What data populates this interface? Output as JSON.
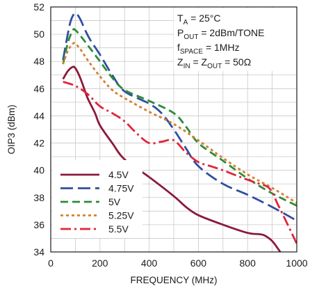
{
  "chart_data": {
    "type": "line",
    "xlabel": "FREQUENCY (MHz)",
    "ylabel": "OIP3 (dBm)",
    "xlim": [
      0,
      1000
    ],
    "ylim": [
      34,
      52
    ],
    "xticks": [
      0,
      200,
      400,
      600,
      800,
      1000
    ],
    "yticks": [
      34,
      36,
      38,
      40,
      42,
      44,
      46,
      48,
      50,
      52
    ],
    "grid": true,
    "legend_position": "bottom-left",
    "annotations": [
      {
        "main": "T",
        "sub": "A",
        "rest": " = 25°C"
      },
      {
        "main": "P",
        "sub": "OUT",
        "rest": " = 2dBm/TONE"
      },
      {
        "main": "f",
        "sub": "SPACE",
        "rest": " = 1MHz"
      },
      {
        "main": "Z",
        "sub": "IN",
        "rest": " = Z",
        "sub2": "OUT",
        "rest2": " = 50Ω"
      }
    ],
    "series": [
      {
        "name": "4.5V",
        "color": "#8b1a3a",
        "dash": "solid",
        "x": [
          50,
          70,
          90,
          100,
          115,
          130,
          150,
          180,
          200,
          250,
          300,
          400,
          500,
          550,
          600,
          700,
          800,
          850,
          870,
          900,
          925,
          940
        ],
        "y": [
          46.7,
          47.3,
          47.6,
          47.5,
          47.0,
          46.3,
          45.3,
          44.2,
          43.3,
          42.0,
          40.8,
          39.5,
          38.1,
          37.3,
          36.7,
          36.0,
          35.4,
          35.3,
          35.2,
          34.8,
          34.2,
          33.8
        ]
      },
      {
        "name": "4.75V",
        "color": "#2f4f9f",
        "dash": "long",
        "x": [
          50,
          65,
          80,
          95,
          105,
          120,
          140,
          160,
          200,
          250,
          300,
          400,
          450,
          500,
          550,
          600,
          700,
          800,
          900,
          1000
        ],
        "y": [
          48.1,
          49.6,
          50.9,
          51.5,
          51.5,
          51.1,
          50.3,
          49.6,
          48.5,
          47.0,
          45.8,
          44.9,
          44.2,
          43.0,
          41.6,
          40.3,
          39.0,
          38.2,
          37.3,
          36.3
        ]
      },
      {
        "name": "5V",
        "color": "#2e8b3a",
        "dash": "medium",
        "x": [
          50,
          70,
          90,
          100,
          120,
          150,
          200,
          250,
          300,
          400,
          500,
          550,
          600,
          700,
          800,
          900,
          1000
        ],
        "y": [
          47.8,
          49.4,
          50.3,
          50.3,
          49.9,
          49.2,
          48.0,
          46.8,
          45.9,
          45.1,
          44.2,
          43.2,
          42.0,
          40.7,
          39.4,
          38.3,
          37.4
        ]
      },
      {
        "name": "5.25V",
        "color": "#d2802e",
        "dash": "dotted",
        "x": [
          50,
          70,
          90,
          100,
          120,
          150,
          200,
          250,
          300,
          400,
          500,
          600,
          700,
          800,
          900,
          1000
        ],
        "y": [
          47.8,
          48.8,
          49.3,
          49.3,
          48.9,
          48.1,
          46.9,
          45.9,
          45.3,
          44.3,
          43.4,
          42.2,
          40.9,
          39.7,
          38.7,
          37.6
        ]
      },
      {
        "name": "5.5V",
        "color": "#e0253a",
        "dash": "dashdot",
        "x": [
          50,
          100,
          150,
          200,
          250,
          300,
          350,
          400,
          450,
          500,
          550,
          600,
          650,
          700,
          800,
          850,
          880,
          900,
          920,
          950,
          1000
        ],
        "y": [
          46.5,
          46.2,
          45.6,
          44.7,
          44.2,
          43.6,
          42.7,
          42.0,
          42.1,
          42.2,
          41.3,
          40.6,
          40.3,
          40.0,
          39.3,
          39.0,
          38.8,
          38.4,
          37.6,
          36.5,
          34.6
        ]
      }
    ]
  }
}
